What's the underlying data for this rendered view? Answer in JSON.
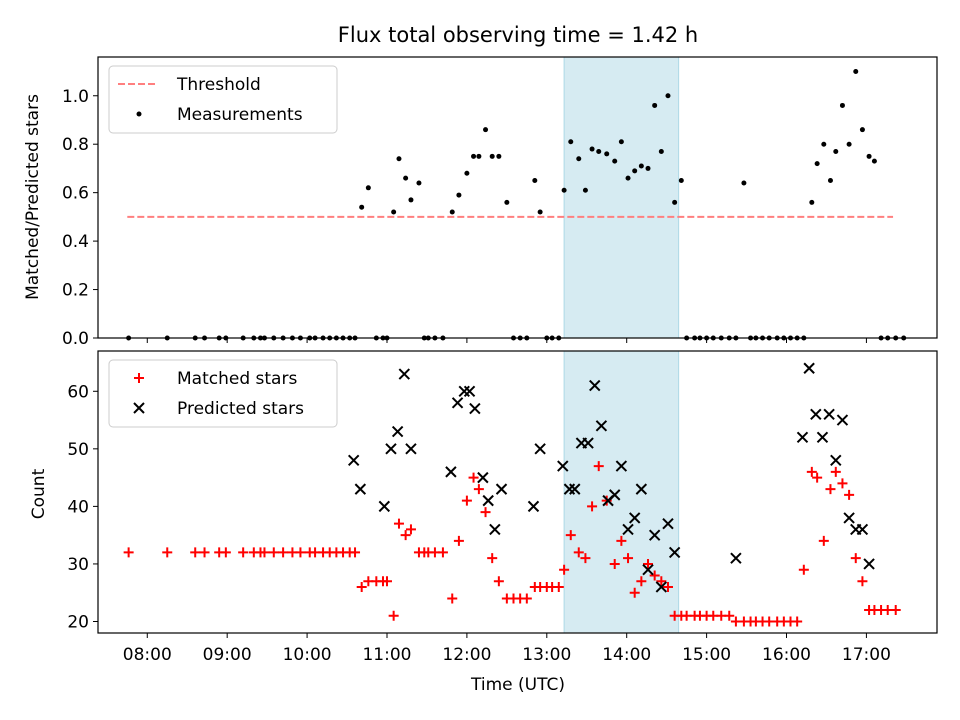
{
  "title": "Flux total observing time = 1.42 h",
  "chart_data": [
    {
      "type": "scatter",
      "title": "Flux total observing time = 1.42 h",
      "ylabel": "Matched/Predicted stars",
      "xlabel": "",
      "xlim": [
        "07:23",
        "17:53"
      ],
      "ylim": [
        0,
        1.16
      ],
      "y_ticks": [
        0.0,
        0.2,
        0.4,
        0.6,
        0.8,
        1.0
      ],
      "y_tick_labels": [
        "0.0",
        "0.2",
        "0.4",
        "0.6",
        "0.8",
        "1.0"
      ],
      "legend": {
        "position": "top-left",
        "entries": [
          "Threshold",
          "Measurements"
        ]
      },
      "highlight_span": [
        "13:13",
        "14:39"
      ],
      "threshold": {
        "name": "Threshold",
        "y": 0.5,
        "x_range": [
          "07:45",
          "17:20"
        ],
        "color": "#ff7f7f",
        "style": "dashed"
      },
      "series": [
        {
          "name": "Measurements",
          "color": "#000000",
          "points": [
            [
              "07:46",
              0
            ],
            [
              "08:15",
              0
            ],
            [
              "08:36",
              0
            ],
            [
              "08:43",
              0
            ],
            [
              "08:54",
              0
            ],
            [
              "08:59",
              0
            ],
            [
              "09:12",
              0
            ],
            [
              "09:20",
              0
            ],
            [
              "09:25",
              0
            ],
            [
              "09:28",
              0
            ],
            [
              "09:35",
              0
            ],
            [
              "09:42",
              0
            ],
            [
              "09:49",
              0
            ],
            [
              "09:55",
              0
            ],
            [
              "10:02",
              0
            ],
            [
              "10:06",
              0
            ],
            [
              "10:12",
              0
            ],
            [
              "10:17",
              0
            ],
            [
              "10:22",
              0
            ],
            [
              "10:27",
              0
            ],
            [
              "10:32",
              0
            ],
            [
              "10:36",
              0
            ],
            [
              "10:41",
              0.54
            ],
            [
              "10:46",
              0.62
            ],
            [
              "10:52",
              0
            ],
            [
              "10:57",
              0
            ],
            [
              "11:00",
              0
            ],
            [
              "11:05",
              0.52
            ],
            [
              "11:09",
              0.74
            ],
            [
              "11:14",
              0.66
            ],
            [
              "11:18",
              0.57
            ],
            [
              "11:24",
              0.64
            ],
            [
              "11:28",
              0
            ],
            [
              "11:31",
              0
            ],
            [
              "11:36",
              0
            ],
            [
              "11:42",
              0
            ],
            [
              "11:49",
              0.52
            ],
            [
              "11:54",
              0.59
            ],
            [
              "12:00",
              0.68
            ],
            [
              "12:05",
              0.75
            ],
            [
              "12:09",
              0.75
            ],
            [
              "12:14",
              0.86
            ],
            [
              "12:19",
              0.75
            ],
            [
              "12:24",
              0.75
            ],
            [
              "12:30",
              0.56
            ],
            [
              "12:35",
              0
            ],
            [
              "12:40",
              0
            ],
            [
              "12:45",
              0
            ],
            [
              "12:51",
              0.65
            ],
            [
              "12:55",
              0.52
            ],
            [
              "13:00",
              0
            ],
            [
              "13:04",
              0
            ],
            [
              "13:09",
              0
            ],
            [
              "13:13",
              0.61
            ],
            [
              "13:18",
              0.81
            ],
            [
              "13:24",
              0.74
            ],
            [
              "13:29",
              0.61
            ],
            [
              "13:34",
              0.78
            ],
            [
              "13:39",
              0.77
            ],
            [
              "13:45",
              0.76
            ],
            [
              "13:51",
              0.73
            ],
            [
              "13:56",
              0.81
            ],
            [
              "14:01",
              0.66
            ],
            [
              "14:06",
              0.69
            ],
            [
              "14:11",
              0.71
            ],
            [
              "14:16",
              0.7
            ],
            [
              "14:21",
              0.96
            ],
            [
              "14:26",
              0.77
            ],
            [
              "14:31",
              1.0
            ],
            [
              "14:36",
              0.56
            ],
            [
              "14:41",
              0.65
            ],
            [
              "14:45",
              0
            ],
            [
              "14:51",
              0
            ],
            [
              "14:55",
              0
            ],
            [
              "15:00",
              0
            ],
            [
              "15:05",
              0
            ],
            [
              "15:11",
              0
            ],
            [
              "15:17",
              0
            ],
            [
              "15:22",
              0
            ],
            [
              "15:28",
              0.64
            ],
            [
              "15:33",
              0
            ],
            [
              "15:37",
              0
            ],
            [
              "15:42",
              0
            ],
            [
              "15:47",
              0
            ],
            [
              "15:53",
              0
            ],
            [
              "15:58",
              0
            ],
            [
              "16:03",
              0
            ],
            [
              "16:08",
              0
            ],
            [
              "16:13",
              0
            ],
            [
              "16:19",
              0.56
            ],
            [
              "16:23",
              0.72
            ],
            [
              "16:28",
              0.8
            ],
            [
              "16:33",
              0.65
            ],
            [
              "16:37",
              0.77
            ],
            [
              "16:42",
              0.96
            ],
            [
              "16:47",
              0.8
            ],
            [
              "16:52",
              1.1
            ],
            [
              "16:57",
              0.86
            ],
            [
              "17:02",
              0.75
            ],
            [
              "17:06",
              0.73
            ],
            [
              "17:11",
              0
            ],
            [
              "17:16",
              0
            ],
            [
              "17:22",
              0
            ],
            [
              "17:28",
              0
            ]
          ]
        }
      ]
    },
    {
      "type": "scatter",
      "title": "",
      "xlabel": "Time (UTC)",
      "ylabel": "Count",
      "xlim": [
        "07:23",
        "17:53"
      ],
      "ylim": [
        18,
        67
      ],
      "x_tick_labels": [
        "08:00",
        "09:00",
        "10:00",
        "11:00",
        "12:00",
        "13:00",
        "14:00",
        "15:00",
        "16:00",
        "17:00"
      ],
      "y_ticks": [
        20,
        30,
        40,
        50,
        60
      ],
      "y_tick_labels": [
        "20",
        "30",
        "40",
        "50",
        "60"
      ],
      "legend": {
        "position": "top-left",
        "entries": [
          "Matched stars",
          "Predicted stars"
        ]
      },
      "highlight_span": [
        "13:13",
        "14:39"
      ],
      "series": [
        {
          "name": "Matched stars",
          "color": "#ff0000",
          "marker": "plus",
          "points": [
            [
              "07:46",
              32
            ],
            [
              "08:15",
              32
            ],
            [
              "08:36",
              32
            ],
            [
              "08:43",
              32
            ],
            [
              "08:54",
              32
            ],
            [
              "08:59",
              32
            ],
            [
              "09:12",
              32
            ],
            [
              "09:20",
              32
            ],
            [
              "09:25",
              32
            ],
            [
              "09:28",
              32
            ],
            [
              "09:35",
              32
            ],
            [
              "09:42",
              32
            ],
            [
              "09:49",
              32
            ],
            [
              "09:55",
              32
            ],
            [
              "10:02",
              32
            ],
            [
              "10:06",
              32
            ],
            [
              "10:12",
              32
            ],
            [
              "10:17",
              32
            ],
            [
              "10:22",
              32
            ],
            [
              "10:27",
              32
            ],
            [
              "10:32",
              32
            ],
            [
              "10:36",
              32
            ],
            [
              "10:41",
              26
            ],
            [
              "10:46",
              27
            ],
            [
              "10:52",
              27
            ],
            [
              "10:57",
              27
            ],
            [
              "11:00",
              27
            ],
            [
              "11:05",
              21
            ],
            [
              "11:09",
              37
            ],
            [
              "11:14",
              35
            ],
            [
              "11:18",
              36
            ],
            [
              "11:24",
              32
            ],
            [
              "11:28",
              32
            ],
            [
              "11:31",
              32
            ],
            [
              "11:36",
              32
            ],
            [
              "11:42",
              32
            ],
            [
              "11:49",
              24
            ],
            [
              "11:54",
              34
            ],
            [
              "12:00",
              41
            ],
            [
              "12:05",
              45
            ],
            [
              "12:09",
              43
            ],
            [
              "12:14",
              39
            ],
            [
              "12:19",
              31
            ],
            [
              "12:24",
              27
            ],
            [
              "12:30",
              24
            ],
            [
              "12:35",
              24
            ],
            [
              "12:40",
              24
            ],
            [
              "12:45",
              24
            ],
            [
              "12:51",
              26
            ],
            [
              "12:55",
              26
            ],
            [
              "13:00",
              26
            ],
            [
              "13:04",
              26
            ],
            [
              "13:09",
              26
            ],
            [
              "13:13",
              29
            ],
            [
              "13:18",
              35
            ],
            [
              "13:24",
              32
            ],
            [
              "13:29",
              31
            ],
            [
              "13:34",
              40
            ],
            [
              "13:39",
              47
            ],
            [
              "13:45",
              41
            ],
            [
              "13:51",
              30
            ],
            [
              "13:56",
              34
            ],
            [
              "14:01",
              31
            ],
            [
              "14:06",
              25
            ],
            [
              "14:11",
              27
            ],
            [
              "14:16",
              30
            ],
            [
              "14:21",
              28
            ],
            [
              "14:26",
              27
            ],
            [
              "14:31",
              26
            ],
            [
              "14:36",
              21
            ],
            [
              "14:41",
              21
            ],
            [
              "14:45",
              21
            ],
            [
              "14:51",
              21
            ],
            [
              "14:55",
              21
            ],
            [
              "15:00",
              21
            ],
            [
              "15:05",
              21
            ],
            [
              "15:11",
              21
            ],
            [
              "15:17",
              21
            ],
            [
              "15:22",
              20
            ],
            [
              "15:28",
              20
            ],
            [
              "15:33",
              20
            ],
            [
              "15:37",
              20
            ],
            [
              "15:42",
              20
            ],
            [
              "15:47",
              20
            ],
            [
              "15:53",
              20
            ],
            [
              "15:58",
              20
            ],
            [
              "16:03",
              20
            ],
            [
              "16:08",
              20
            ],
            [
              "16:13",
              29
            ],
            [
              "16:19",
              46
            ],
            [
              "16:23",
              45
            ],
            [
              "16:28",
              34
            ],
            [
              "16:33",
              43
            ],
            [
              "16:37",
              46
            ],
            [
              "16:42",
              44
            ],
            [
              "16:47",
              42
            ],
            [
              "16:52",
              31
            ],
            [
              "16:57",
              27
            ],
            [
              "17:02",
              22
            ],
            [
              "17:06",
              22
            ],
            [
              "17:11",
              22
            ],
            [
              "17:16",
              22
            ],
            [
              "17:22",
              22
            ]
          ]
        },
        {
          "name": "Predicted stars",
          "color": "#000000",
          "marker": "x",
          "points": [
            [
              "10:35",
              48
            ],
            [
              "10:40",
              43
            ],
            [
              "10:58",
              40
            ],
            [
              "11:03",
              50
            ],
            [
              "11:08",
              53
            ],
            [
              "11:13",
              63
            ],
            [
              "11:18",
              50
            ],
            [
              "11:48",
              46
            ],
            [
              "11:53",
              58
            ],
            [
              "11:58",
              60
            ],
            [
              "12:02",
              60
            ],
            [
              "12:06",
              57
            ],
            [
              "12:12",
              45
            ],
            [
              "12:16",
              41
            ],
            [
              "12:21",
              36
            ],
            [
              "12:26",
              43
            ],
            [
              "12:50",
              40
            ],
            [
              "12:55",
              50
            ],
            [
              "13:12",
              47
            ],
            [
              "13:17",
              43
            ],
            [
              "13:21",
              43
            ],
            [
              "13:26",
              51
            ],
            [
              "13:31",
              51
            ],
            [
              "13:36",
              61
            ],
            [
              "13:41",
              54
            ],
            [
              "13:46",
              41
            ],
            [
              "13:51",
              42
            ],
            [
              "13:56",
              47
            ],
            [
              "14:01",
              36
            ],
            [
              "14:06",
              38
            ],
            [
              "14:11",
              43
            ],
            [
              "14:16",
              29
            ],
            [
              "14:21",
              35
            ],
            [
              "14:26",
              26
            ],
            [
              "14:31",
              37
            ],
            [
              "14:36",
              32
            ],
            [
              "15:22",
              31
            ],
            [
              "16:12",
              52
            ],
            [
              "16:17",
              64
            ],
            [
              "16:22",
              56
            ],
            [
              "16:27",
              52
            ],
            [
              "16:32",
              56
            ],
            [
              "16:37",
              48
            ],
            [
              "16:42",
              55
            ],
            [
              "16:47",
              38
            ],
            [
              "16:52",
              36
            ],
            [
              "16:57",
              36
            ],
            [
              "17:02",
              30
            ]
          ]
        }
      ]
    }
  ]
}
